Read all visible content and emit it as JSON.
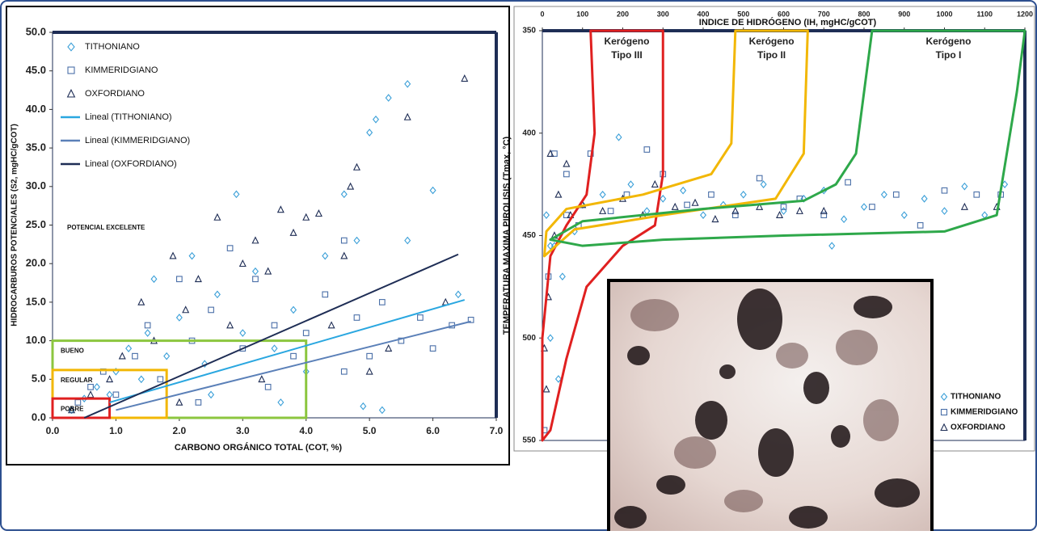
{
  "chart_data": [
    {
      "type": "scatter",
      "xlabel": "CARBONO ORGÁNICO TOTAL (COT, %)",
      "ylabel": "HIDROCARBUROS POTENCIALES (S2, mgHC/gCOT)",
      "xlim": [
        0,
        7
      ],
      "ylim": [
        0,
        50
      ],
      "xticks": [
        {
          "value": 0,
          "label": "0.0"
        },
        {
          "value": 1,
          "label": "1.0"
        },
        {
          "value": 2,
          "label": "2.0"
        },
        {
          "value": 3,
          "label": "3.0"
        },
        {
          "value": 4,
          "label": "4.0"
        },
        {
          "value": 5,
          "label": "5.0"
        },
        {
          "value": 6,
          "label": "6.0"
        },
        {
          "value": 7,
          "label": "7.0"
        }
      ],
      "yticks": [
        {
          "value": 0,
          "label": "0.0"
        },
        {
          "value": 5,
          "label": "5.0"
        },
        {
          "value": 10,
          "label": "10.0"
        },
        {
          "value": 15,
          "label": "15.0"
        },
        {
          "value": 20,
          "label": "20.0"
        },
        {
          "value": 25,
          "label": "25.0"
        },
        {
          "value": 30,
          "label": "30.0"
        },
        {
          "value": 35,
          "label": "35.0"
        },
        {
          "value": 40,
          "label": "40.0"
        },
        {
          "value": 45,
          "label": "45.0"
        },
        {
          "value": 50,
          "label": "50.0"
        }
      ],
      "legend": "top-left",
      "series": [
        {
          "name": "TITHONIANO",
          "marker": "diamond",
          "color": "#3a9fd8",
          "x": [
            0.3,
            0.5,
            0.7,
            0.9,
            1.0,
            1.2,
            1.4,
            1.5,
            1.6,
            1.8,
            2.0,
            2.2,
            2.4,
            2.6,
            2.9,
            3.0,
            3.2,
            3.5,
            3.8,
            4.0,
            4.3,
            4.6,
            4.8,
            5.0,
            5.1,
            5.3,
            5.6,
            5.6,
            6.0,
            6.4,
            4.9,
            5.2,
            3.6,
            2.5
          ],
          "values": [
            1,
            2.5,
            4,
            3,
            6,
            9,
            5,
            11,
            18,
            8,
            13,
            21,
            7,
            16,
            29,
            11,
            19,
            9,
            14,
            6,
            21,
            29,
            23,
            37,
            38.7,
            41.5,
            43.3,
            23,
            29.5,
            16,
            1.5,
            1,
            2,
            3
          ]
        },
        {
          "name": "KIMMERIDGIANO",
          "marker": "square",
          "color": "#4a6fa8",
          "x": [
            0.4,
            0.6,
            0.8,
            1.0,
            1.3,
            1.5,
            1.7,
            2.0,
            2.2,
            2.5,
            2.8,
            3.0,
            3.2,
            3.5,
            3.8,
            4.0,
            4.3,
            4.6,
            4.8,
            5.0,
            5.2,
            5.5,
            5.8,
            6.0,
            6.3,
            6.6,
            4.6,
            3.4,
            2.3
          ],
          "values": [
            2,
            4,
            6,
            3,
            8,
            12,
            5,
            18,
            10,
            14,
            22,
            9,
            18,
            12,
            8,
            11,
            16,
            23,
            13,
            8,
            15,
            10,
            13,
            9,
            12,
            12.7,
            6,
            4,
            2
          ]
        },
        {
          "name": "OXFORDIANO",
          "marker": "triangle",
          "color": "#1e2d55",
          "x": [
            0.3,
            0.6,
            0.9,
            1.1,
            1.4,
            1.6,
            1.9,
            2.1,
            2.3,
            2.6,
            2.8,
            3.0,
            3.2,
            3.4,
            3.6,
            3.8,
            4.0,
            4.2,
            4.4,
            4.6,
            4.7,
            4.8,
            5.0,
            5.3,
            5.6,
            6.2,
            6.5,
            3.3,
            2.0
          ],
          "values": [
            1,
            3,
            5,
            8,
            15,
            10,
            21,
            14,
            18,
            26,
            12,
            20,
            23,
            19,
            27,
            24,
            26,
            26.5,
            12,
            21,
            30,
            32.5,
            6,
            9,
            39,
            15,
            44,
            5,
            2
          ]
        }
      ],
      "trendlines": [
        {
          "name": "Lineal (TITHONIANO)",
          "color": "#2aa7e0",
          "x": [
            0.9,
            6.5
          ],
          "y": [
            2,
            15.3
          ]
        },
        {
          "name": "Lineal (KIMMERIDGIANO)",
          "color": "#5b80b8",
          "x": [
            1.0,
            6.6
          ],
          "y": [
            1,
            12.5
          ]
        },
        {
          "name": "Lineal (OXFORDIANO)",
          "color": "#1e2d55",
          "x": [
            0.5,
            6.4
          ],
          "y": [
            0,
            21.2
          ]
        }
      ],
      "annotations": [
        "POTENCIAL EXCELENTE"
      ],
      "zones": [
        {
          "label": "BUENO",
          "color": "#8cc63f",
          "x": [
            0,
            4
          ],
          "y": [
            0,
            10
          ]
        },
        {
          "label": "REGULAR",
          "color": "#f2b705",
          "x": [
            0,
            1.8
          ],
          "y": [
            0,
            6.2
          ]
        },
        {
          "label": "POBRE",
          "color": "#e02020",
          "x": [
            0,
            0.9
          ],
          "y": [
            0,
            2.5
          ]
        }
      ]
    },
    {
      "type": "scatter",
      "xlabel": "INDICE DE HIDRÓGENO (IH, mgHC/gCOT)",
      "ylabel": "TEMPERATURA MAXIMA PIROLISIS (Tmax, °C)",
      "xlim": [
        0,
        1200
      ],
      "ylim": [
        350,
        550
      ],
      "y_reversed": true,
      "xaxis_position": "top",
      "xticks": [
        0,
        100,
        200,
        300,
        400,
        500,
        600,
        700,
        800,
        900,
        1000,
        1100,
        1200
      ],
      "yticks": [
        350,
        400,
        450,
        500,
        550
      ],
      "legend": "bottom-right",
      "series": [
        {
          "name": "TITHONIANO",
          "marker": "diamond",
          "color": "#3a9fd8",
          "x": [
            10,
            30,
            50,
            20,
            40,
            80,
            100,
            150,
            190,
            220,
            260,
            300,
            350,
            400,
            450,
            500,
            550,
            600,
            650,
            700,
            750,
            800,
            850,
            900,
            950,
            1000,
            1050,
            1100,
            1150,
            720,
            20
          ],
          "values": [
            440,
            455,
            470,
            500,
            520,
            448,
            435,
            430,
            402,
            425,
            438,
            432,
            428,
            440,
            435,
            430,
            425,
            438,
            432,
            428,
            442,
            436,
            430,
            440,
            432,
            438,
            426,
            440,
            425,
            455,
            455
          ]
        },
        {
          "name": "KIMMERIDGIANO",
          "marker": "square",
          "color": "#4a6fa8",
          "x": [
            5,
            15,
            30,
            60,
            90,
            120,
            170,
            210,
            260,
            300,
            360,
            420,
            480,
            540,
            600,
            640,
            700,
            760,
            820,
            880,
            940,
            1000,
            1080,
            1140,
            60
          ],
          "values": [
            545,
            470,
            410,
            420,
            445,
            410,
            438,
            430,
            408,
            420,
            435,
            430,
            440,
            422,
            436,
            432,
            440,
            424,
            436,
            430,
            445,
            428,
            430,
            430,
            440
          ]
        },
        {
          "name": "OXFORDIANO",
          "marker": "triangle",
          "color": "#1e2d55",
          "x": [
            5,
            10,
            15,
            20,
            40,
            70,
            100,
            150,
            200,
            250,
            280,
            330,
            380,
            430,
            480,
            540,
            590,
            640,
            700,
            1050,
            1130,
            60,
            30
          ],
          "values": [
            505,
            525,
            480,
            410,
            430,
            440,
            435,
            438,
            432,
            440,
            425,
            436,
            434,
            442,
            438,
            436,
            440,
            438,
            438,
            436,
            436,
            415,
            450
          ]
        }
      ],
      "envelopes": [
        {
          "label": [
            "Kerógeno",
            "Tipo III"
          ],
          "color": "#e02020",
          "x": [
            120,
            300,
            300,
            280,
            200,
            110,
            60,
            20,
            0,
            0,
            20,
            60,
            110,
            130,
            120
          ],
          "y": [
            350,
            350,
            420,
            445,
            455,
            475,
            510,
            545,
            550,
            500,
            460,
            445,
            430,
            400,
            350
          ]
        },
        {
          "label": [
            "Kerógeno",
            "Tipo II"
          ],
          "color": "#f2b705",
          "x": [
            480,
            660,
            650,
            580,
            300,
            80,
            5,
            10,
            60,
            250,
            420,
            470,
            480
          ],
          "y": [
            350,
            350,
            410,
            432,
            440,
            447,
            460,
            448,
            437,
            430,
            420,
            405,
            350
          ]
        },
        {
          "label": [
            "Kerógeno",
            "Tipo I"
          ],
          "color": "#2ea84a",
          "x": [
            820,
            1200,
            1180,
            1130,
            1000,
            600,
            300,
            100,
            20,
            100,
            400,
            650,
            730,
            780,
            820
          ],
          "y": [
            350,
            350,
            380,
            440,
            448,
            450,
            452,
            455,
            452,
            443,
            437,
            433,
            425,
            410,
            350
          ]
        }
      ]
    }
  ]
}
